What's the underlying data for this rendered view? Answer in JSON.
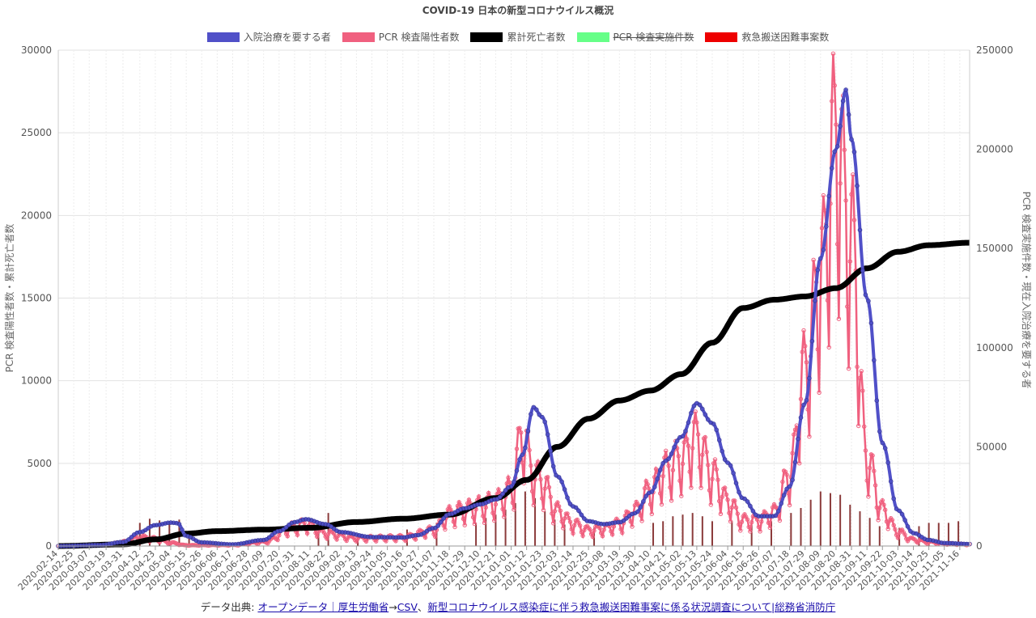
{
  "chart_data": {
    "type": "line",
    "title": "COVID-19 日本の新型コロナウイルス概況",
    "legend_position": "top",
    "legend": [
      {
        "label": "入院治療を要する者",
        "color": "#5050c8",
        "hidden": false
      },
      {
        "label": "PCR 検査陽性者数",
        "color": "#f0607f",
        "hidden": false
      },
      {
        "label": "累計死亡者数",
        "color": "#000000",
        "hidden": false
      },
      {
        "label": "PCR 検査実施件数",
        "color": "#66ff88",
        "hidden": true
      },
      {
        "label": "救急搬送困難事案数",
        "color": "#ee0000",
        "hidden": false
      }
    ],
    "y_left_label": "PCR 検査陽性者数・累計死亡者数",
    "y_right_label": "PCR 検査実施件数・現在入院治療を要する者",
    "y_left_ticks": [
      0,
      5000,
      10000,
      15000,
      20000,
      25000,
      30000
    ],
    "y_right_ticks": [
      0,
      50000,
      100000,
      150000,
      200000,
      250000
    ],
    "ylim_left": [
      0,
      30000
    ],
    "ylim_right": [
      0,
      250000
    ],
    "x_start": "2020-02-14",
    "x_end": "2021-11-23",
    "x_tick_labels": [
      "2020-02-14",
      "2020-02-25",
      "2020-03-07",
      "2020-03-19",
      "2020-03-31",
      "2020-04-12",
      "2020-04-23",
      "2020-05-04",
      "2020-05-15",
      "2020-05-26",
      "2020-06-06",
      "2020-06-17",
      "2020-06-28",
      "2020-07-09",
      "2020-07-20",
      "2020-07-31",
      "2020-08-11",
      "2020-08-22",
      "2020-09-02",
      "2020-09-13",
      "2020-09-24",
      "2020-10-05",
      "2020-10-16",
      "2020-10-27",
      "2020-11-07",
      "2020-11-18",
      "2020-11-29",
      "2020-12-10",
      "2020-12-21",
      "2021-01-01",
      "2021-01-12",
      "2021-01-23",
      "2021-02-03",
      "2021-02-14",
      "2021-02-25",
      "2021-03-08",
      "2021-03-19",
      "2021-03-30",
      "2021-04-10",
      "2021-04-21",
      "2021-05-02",
      "2021-05-13",
      "2021-05-24",
      "2021-06-04",
      "2021-06-15",
      "2021-06-26",
      "2021-07-07",
      "2021-07-18",
      "2021-07-29",
      "2021-08-09",
      "2021-08-20",
      "2021-08-31",
      "2021-09-11",
      "2021-09-22",
      "2021-10-03",
      "2021-10-14",
      "2021-10-25",
      "2021-11-05",
      "2021-11-16"
    ],
    "grid": true,
    "series": [
      {
        "name": "入院治療を要する者",
        "axis": "right",
        "color": "#5050c8",
        "points": [
          [
            "2020-02-14",
            0
          ],
          [
            "2020-03-15",
            500
          ],
          [
            "2020-03-31",
            2000
          ],
          [
            "2020-04-12",
            7000
          ],
          [
            "2020-04-23",
            10500
          ],
          [
            "2020-05-04",
            11800
          ],
          [
            "2020-05-09",
            11500
          ],
          [
            "2020-05-15",
            5000
          ],
          [
            "2020-05-26",
            1800
          ],
          [
            "2020-06-17",
            800
          ],
          [
            "2020-07-09",
            3000
          ],
          [
            "2020-07-20",
            7500
          ],
          [
            "2020-07-31",
            12000
          ],
          [
            "2020-08-08",
            13500
          ],
          [
            "2020-08-22",
            11000
          ],
          [
            "2020-09-02",
            7000
          ],
          [
            "2020-09-24",
            4500
          ],
          [
            "2020-10-16",
            4300
          ],
          [
            "2020-10-27",
            5500
          ],
          [
            "2020-11-07",
            9000
          ],
          [
            "2020-11-18",
            16000
          ],
          [
            "2020-11-29",
            19000
          ],
          [
            "2020-12-10",
            21000
          ],
          [
            "2020-12-21",
            23500
          ],
          [
            "2021-01-01",
            30000
          ],
          [
            "2021-01-09",
            46000
          ],
          [
            "2021-01-17",
            70000
          ],
          [
            "2021-01-23",
            65000
          ],
          [
            "2021-02-03",
            35000
          ],
          [
            "2021-02-14",
            20000
          ],
          [
            "2021-02-25",
            12500
          ],
          [
            "2021-03-08",
            11000
          ],
          [
            "2021-03-19",
            12000
          ],
          [
            "2021-03-30",
            16500
          ],
          [
            "2021-04-10",
            27000
          ],
          [
            "2021-04-21",
            43000
          ],
          [
            "2021-05-02",
            55000
          ],
          [
            "2021-05-13",
            72000
          ],
          [
            "2021-05-24",
            62000
          ],
          [
            "2021-06-04",
            42000
          ],
          [
            "2021-06-15",
            24000
          ],
          [
            "2021-06-26",
            15000
          ],
          [
            "2021-07-07",
            15000
          ],
          [
            "2021-07-18",
            30000
          ],
          [
            "2021-07-29",
            72000
          ],
          [
            "2021-08-09",
            145000
          ],
          [
            "2021-08-20",
            200000
          ],
          [
            "2021-08-27",
            230000
          ],
          [
            "2021-08-31",
            205000
          ],
          [
            "2021-09-11",
            125000
          ],
          [
            "2021-09-22",
            52000
          ],
          [
            "2021-10-03",
            18000
          ],
          [
            "2021-10-14",
            6500
          ],
          [
            "2021-10-25",
            3000
          ],
          [
            "2021-11-05",
            1500
          ],
          [
            "2021-11-23",
            1000
          ]
        ]
      },
      {
        "name": "PCR 検査陽性者数",
        "axis": "left",
        "color": "#f0607f",
        "points": [
          [
            "2020-02-14",
            0
          ],
          [
            "2020-03-19",
            60
          ],
          [
            "2020-03-31",
            250
          ],
          [
            "2020-04-12",
            550
          ],
          [
            "2020-04-23",
            450
          ],
          [
            "2020-05-04",
            200
          ],
          [
            "2020-05-15",
            50
          ],
          [
            "2020-06-17",
            60
          ],
          [
            "2020-07-09",
            250
          ],
          [
            "2020-07-31",
            1200
          ],
          [
            "2020-08-08",
            1400
          ],
          [
            "2020-08-22",
            800
          ],
          [
            "2020-09-13",
            500
          ],
          [
            "2020-10-16",
            550
          ],
          [
            "2020-11-07",
            1000
          ],
          [
            "2020-11-18",
            2000
          ],
          [
            "2020-11-29",
            2300
          ],
          [
            "2020-12-10",
            2500
          ],
          [
            "2020-12-21",
            2800
          ],
          [
            "2021-01-01",
            3500
          ],
          [
            "2021-01-09",
            7000
          ],
          [
            "2021-01-17",
            4500
          ],
          [
            "2021-01-23",
            4000
          ],
          [
            "2021-02-03",
            2200
          ],
          [
            "2021-02-14",
            1400
          ],
          [
            "2021-02-25",
            1000
          ],
          [
            "2021-03-08",
            1100
          ],
          [
            "2021-03-19",
            1400
          ],
          [
            "2021-03-30",
            2200
          ],
          [
            "2021-04-10",
            3500
          ],
          [
            "2021-04-21",
            4800
          ],
          [
            "2021-05-02",
            5500
          ],
          [
            "2021-05-13",
            6800
          ],
          [
            "2021-05-24",
            4500
          ],
          [
            "2021-06-04",
            2800
          ],
          [
            "2021-06-15",
            1600
          ],
          [
            "2021-06-26",
            1600
          ],
          [
            "2021-07-07",
            2100
          ],
          [
            "2021-07-18",
            4500
          ],
          [
            "2021-07-29",
            11000
          ],
          [
            "2021-08-09",
            17000
          ],
          [
            "2021-08-20",
            25500
          ],
          [
            "2021-08-31",
            19000
          ],
          [
            "2021-09-11",
            5500
          ],
          [
            "2021-09-22",
            2300
          ],
          [
            "2021-10-03",
            900
          ],
          [
            "2021-10-14",
            400
          ],
          [
            "2021-10-25",
            250
          ],
          [
            "2021-11-05",
            150
          ],
          [
            "2021-11-23",
            100
          ]
        ]
      },
      {
        "name": "累計死亡者数",
        "axis": "left",
        "color": "#000000",
        "points": [
          [
            "2020-02-14",
            0
          ],
          [
            "2020-03-31",
            100
          ],
          [
            "2020-04-23",
            400
          ],
          [
            "2020-05-15",
            750
          ],
          [
            "2020-06-06",
            900
          ],
          [
            "2020-07-09",
            990
          ],
          [
            "2020-08-11",
            1100
          ],
          [
            "2020-09-13",
            1450
          ],
          [
            "2020-10-16",
            1650
          ],
          [
            "2020-11-18",
            1900
          ],
          [
            "2020-12-21",
            2900
          ],
          [
            "2021-01-12",
            4000
          ],
          [
            "2021-02-03",
            6000
          ],
          [
            "2021-02-25",
            7700
          ],
          [
            "2021-03-19",
            8800
          ],
          [
            "2021-04-10",
            9400
          ],
          [
            "2021-05-02",
            10400
          ],
          [
            "2021-05-24",
            12300
          ],
          [
            "2021-06-15",
            14400
          ],
          [
            "2021-07-07",
            14900
          ],
          [
            "2021-07-29",
            15100
          ],
          [
            "2021-08-20",
            15600
          ],
          [
            "2021-09-11",
            16800
          ],
          [
            "2021-10-03",
            17800
          ],
          [
            "2021-10-25",
            18200
          ],
          [
            "2021-11-23",
            18350
          ]
        ]
      },
      {
        "name": "PCR 検査実施件数",
        "axis": "right",
        "color": "#66ff88",
        "hidden": true,
        "points": []
      }
    ],
    "bars": {
      "name": "救急搬送困難事案数",
      "axis": "left",
      "color": "#8b3b3b",
      "points": [
        [
          "2020-04-12",
          1400
        ],
        [
          "2020-04-19",
          1650
        ],
        [
          "2020-04-26",
          1550
        ],
        [
          "2020-05-03",
          1450
        ],
        [
          "2020-05-10",
          1600
        ],
        [
          "2020-05-17",
          800
        ],
        [
          "2020-08-17",
          1500
        ],
        [
          "2020-08-24",
          2000
        ],
        [
          "2020-09-14",
          600
        ],
        [
          "2020-10-19",
          1000
        ],
        [
          "2020-11-09",
          1400
        ],
        [
          "2020-12-07",
          1400
        ],
        [
          "2020-12-14",
          1700
        ],
        [
          "2020-12-21",
          1900
        ],
        [
          "2020-12-28",
          2200
        ],
        [
          "2021-01-04",
          2600
        ],
        [
          "2021-01-11",
          3300
        ],
        [
          "2021-01-18",
          2900
        ],
        [
          "2021-01-25",
          2100
        ],
        [
          "2021-02-01",
          1600
        ],
        [
          "2021-02-08",
          1300
        ],
        [
          "2021-03-01",
          1100
        ],
        [
          "2021-04-12",
          1400
        ],
        [
          "2021-04-19",
          1500
        ],
        [
          "2021-04-26",
          1800
        ],
        [
          "2021-05-03",
          1900
        ],
        [
          "2021-05-10",
          2000
        ],
        [
          "2021-05-17",
          1800
        ],
        [
          "2021-05-24",
          1500
        ],
        [
          "2021-06-07",
          1500
        ],
        [
          "2021-06-21",
          1300
        ],
        [
          "2021-07-05",
          1500
        ],
        [
          "2021-07-19",
          2000
        ],
        [
          "2021-07-26",
          2300
        ],
        [
          "2021-08-02",
          2800
        ],
        [
          "2021-08-09",
          3300
        ],
        [
          "2021-08-16",
          3200
        ],
        [
          "2021-08-23",
          3100
        ],
        [
          "2021-08-30",
          2500
        ],
        [
          "2021-09-06",
          2100
        ],
        [
          "2021-09-13",
          1700
        ],
        [
          "2021-09-20",
          1200
        ],
        [
          "2021-10-04",
          1100
        ],
        [
          "2021-10-18",
          1200
        ],
        [
          "2021-10-25",
          1400
        ],
        [
          "2021-11-01",
          1400
        ],
        [
          "2021-11-08",
          1400
        ],
        [
          "2021-11-15",
          1500
        ]
      ]
    }
  },
  "source": {
    "prefix": "データ出典:",
    "link1": "オープンデータ｜厚生労働省",
    "arrow": "→",
    "link2": "CSV",
    "separator": "、",
    "link3": "新型コロナウイルス感染症に伴う救急搬送困難事案に係る状況調査について|総務省消防庁"
  }
}
